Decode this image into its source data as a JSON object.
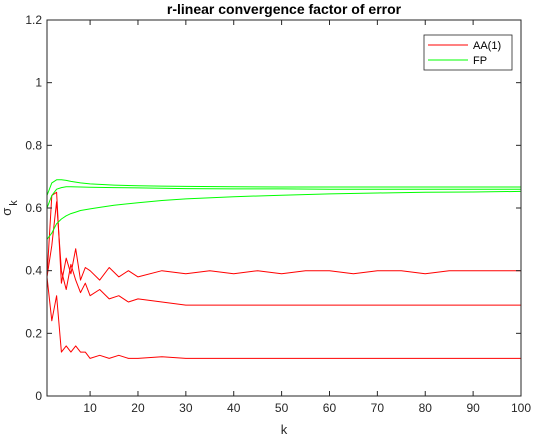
{
  "chart_data": {
    "type": "line",
    "title": "r-linear convergence factor of error",
    "xlabel": "k",
    "ylabel": "σ",
    "ylabel_sub": "k",
    "xlim": [
      1,
      100
    ],
    "ylim": [
      0,
      1.2
    ],
    "xticks": [
      10,
      20,
      30,
      40,
      50,
      60,
      70,
      80,
      90,
      100
    ],
    "yticks": [
      0,
      0.2,
      0.4,
      0.6,
      0.8,
      1,
      1.2
    ],
    "ytick_labels": [
      "0",
      "0.2",
      "0.4",
      "0.6",
      "0.8",
      "1",
      "1.2"
    ],
    "grid": false,
    "legend_position": "top-right",
    "legend": [
      {
        "label": "AA(1)",
        "color": "#ff0000"
      },
      {
        "label": "FP",
        "color": "#00ff00"
      }
    ],
    "series": [
      {
        "group": "AA(1)",
        "color": "#ff0000",
        "x": [
          1,
          2,
          3,
          4,
          5,
          6,
          7,
          8,
          9,
          10,
          12,
          14,
          16,
          18,
          20,
          25,
          30,
          35,
          40,
          45,
          50,
          55,
          60,
          65,
          70,
          75,
          80,
          85,
          90,
          95,
          100
        ],
        "y": [
          0.38,
          0.24,
          0.32,
          0.14,
          0.16,
          0.14,
          0.16,
          0.14,
          0.14,
          0.12,
          0.13,
          0.12,
          0.13,
          0.12,
          0.12,
          0.125,
          0.12,
          0.12,
          0.12,
          0.12,
          0.12,
          0.12,
          0.12,
          0.12,
          0.12,
          0.12,
          0.12,
          0.12,
          0.12,
          0.12,
          0.12
        ]
      },
      {
        "group": "AA(1)",
        "color": "#ff0000",
        "x": [
          1,
          2,
          3,
          4,
          5,
          6,
          7,
          8,
          9,
          10,
          12,
          14,
          16,
          18,
          20,
          25,
          30,
          35,
          40,
          45,
          50,
          55,
          60,
          65,
          70,
          75,
          80,
          85,
          90,
          95,
          100
        ],
        "y": [
          0.38,
          0.48,
          0.62,
          0.4,
          0.34,
          0.42,
          0.37,
          0.33,
          0.36,
          0.32,
          0.34,
          0.31,
          0.32,
          0.3,
          0.31,
          0.3,
          0.29,
          0.29,
          0.29,
          0.29,
          0.29,
          0.29,
          0.29,
          0.29,
          0.29,
          0.29,
          0.29,
          0.29,
          0.29,
          0.29,
          0.29
        ]
      },
      {
        "group": "AA(1)",
        "color": "#ff0000",
        "x": [
          1,
          2,
          3,
          4,
          5,
          6,
          7,
          8,
          9,
          10,
          12,
          14,
          16,
          18,
          20,
          25,
          30,
          35,
          40,
          45,
          50,
          55,
          60,
          65,
          70,
          75,
          80,
          85,
          90,
          95,
          100
        ],
        "y": [
          0.38,
          0.64,
          0.65,
          0.36,
          0.44,
          0.39,
          0.47,
          0.37,
          0.41,
          0.4,
          0.37,
          0.41,
          0.38,
          0.4,
          0.38,
          0.4,
          0.39,
          0.4,
          0.39,
          0.4,
          0.39,
          0.4,
          0.4,
          0.39,
          0.4,
          0.4,
          0.39,
          0.4,
          0.4,
          0.4,
          0.4
        ]
      },
      {
        "group": "FP",
        "color": "#00ff00",
        "x": [
          1,
          2,
          3,
          4,
          5,
          6,
          8,
          10,
          15,
          20,
          25,
          30,
          40,
          50,
          60,
          70,
          80,
          90,
          100
        ],
        "y": [
          0.64,
          0.68,
          0.69,
          0.69,
          0.688,
          0.685,
          0.68,
          0.677,
          0.673,
          0.671,
          0.67,
          0.669,
          0.668,
          0.667,
          0.667,
          0.667,
          0.667,
          0.667,
          0.667
        ]
      },
      {
        "group": "FP",
        "color": "#00ff00",
        "x": [
          1,
          2,
          3,
          4,
          5,
          6,
          8,
          10,
          15,
          20,
          25,
          30,
          40,
          50,
          60,
          70,
          80,
          90,
          100
        ],
        "y": [
          0.6,
          0.64,
          0.66,
          0.665,
          0.668,
          0.668,
          0.667,
          0.666,
          0.665,
          0.664,
          0.663,
          0.662,
          0.661,
          0.661,
          0.66,
          0.66,
          0.66,
          0.66,
          0.66
        ]
      },
      {
        "group": "FP",
        "color": "#00ff00",
        "x": [
          1,
          2,
          3,
          4,
          5,
          6,
          7,
          8,
          10,
          12,
          15,
          20,
          25,
          30,
          40,
          50,
          60,
          70,
          80,
          90,
          100
        ],
        "y": [
          0.5,
          0.52,
          0.55,
          0.565,
          0.575,
          0.582,
          0.587,
          0.592,
          0.597,
          0.602,
          0.609,
          0.617,
          0.624,
          0.629,
          0.636,
          0.641,
          0.645,
          0.648,
          0.65,
          0.651,
          0.653
        ]
      }
    ]
  }
}
